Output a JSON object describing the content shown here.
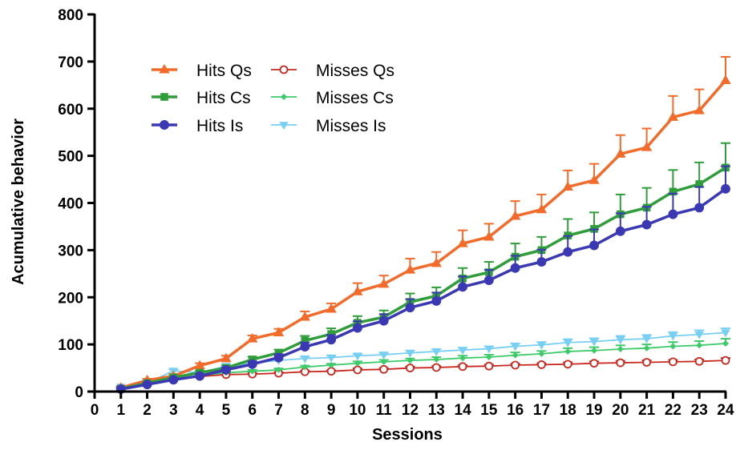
{
  "chart_data": {
    "type": "line",
    "title": "",
    "xlabel": "Sessions",
    "ylabel": "Acumulative behavior",
    "xlim": [
      0,
      24
    ],
    "ylim": [
      0,
      800
    ],
    "x_ticks": [
      "0",
      "1",
      "2",
      "3",
      "4",
      "5",
      "6",
      "7",
      "8",
      "9",
      "10",
      "11",
      "12",
      "13",
      "14",
      "15",
      "16",
      "17",
      "18",
      "19",
      "20",
      "21",
      "22",
      "23",
      "24"
    ],
    "y_ticks": [
      "0",
      "100",
      "200",
      "300",
      "400",
      "500",
      "600",
      "700",
      "800"
    ],
    "grid": false,
    "legend_position": "top-left",
    "x": [
      1,
      2,
      3,
      4,
      5,
      6,
      7,
      8,
      9,
      10,
      11,
      12,
      13,
      14,
      15,
      16,
      17,
      18,
      19,
      20,
      21,
      22,
      23,
      24
    ],
    "series": [
      {
        "name": "Hits Qs",
        "color": "#F26B2A",
        "marker": "triangle-up-filled",
        "values": [
          8,
          24,
          33,
          55,
          70,
          112,
          125,
          158,
          175,
          212,
          228,
          258,
          272,
          314,
          328,
          372,
          386,
          434,
          448,
          504,
          518,
          582,
          596,
          660
        ],
        "error": [
          3,
          3,
          4,
          5,
          6,
          7,
          8,
          12,
          12,
          18,
          18,
          24,
          24,
          28,
          28,
          32,
          32,
          35,
          35,
          40,
          40,
          45,
          45,
          50
        ]
      },
      {
        "name": "Misses Qs",
        "color": "#C8281E",
        "marker": "circle-open",
        "values": [
          8,
          18,
          26,
          32,
          36,
          37,
          39,
          42,
          43,
          46,
          47,
          50,
          51,
          53,
          54,
          56,
          57,
          58,
          60,
          61,
          62,
          63,
          64,
          66
        ],
        "error": [
          2,
          2,
          2,
          2,
          2,
          2,
          2,
          2,
          2,
          3,
          3,
          3,
          3,
          3,
          3,
          3,
          3,
          4,
          4,
          4,
          4,
          4,
          4,
          5
        ]
      },
      {
        "name": "Hits Cs",
        "color": "#2F9E3A",
        "marker": "square-filled",
        "values": [
          6,
          18,
          30,
          40,
          50,
          68,
          82,
          108,
          122,
          146,
          158,
          190,
          203,
          240,
          253,
          286,
          300,
          331,
          345,
          376,
          390,
          424,
          440,
          475
        ],
        "error": [
          3,
          3,
          3,
          4,
          5,
          6,
          7,
          10,
          12,
          14,
          14,
          18,
          18,
          22,
          22,
          28,
          28,
          35,
          35,
          42,
          42,
          46,
          46,
          52
        ]
      },
      {
        "name": "Misses Cs",
        "color": "#3DCB6A",
        "marker": "diamond-filled",
        "values": [
          8,
          16,
          26,
          34,
          40,
          43,
          46,
          52,
          56,
          60,
          63,
          66,
          68,
          71,
          73,
          77,
          80,
          85,
          87,
          90,
          92,
          96,
          98,
          102
        ],
        "error": [
          2,
          2,
          2,
          2,
          3,
          3,
          3,
          3,
          3,
          4,
          4,
          4,
          5,
          5,
          5,
          6,
          6,
          7,
          7,
          8,
          8,
          9,
          9,
          10
        ]
      },
      {
        "name": "Hits Is",
        "color": "#3B38B4",
        "marker": "circle-filled",
        "values": [
          5,
          15,
          25,
          33,
          46,
          58,
          72,
          95,
          110,
          135,
          150,
          178,
          192,
          222,
          236,
          262,
          275,
          296,
          310,
          340,
          354,
          376,
          390,
          430
        ],
        "error": [
          3,
          3,
          3,
          4,
          5,
          6,
          7,
          9,
          10,
          14,
          14,
          18,
          18,
          22,
          22,
          26,
          26,
          34,
          34,
          38,
          38,
          44,
          44,
          48
        ]
      },
      {
        "name": "Misses Is",
        "color": "#78CFF4",
        "marker": "triangle-down-filled",
        "values": [
          10,
          18,
          44,
          40,
          54,
          60,
          66,
          70,
          72,
          76,
          78,
          82,
          85,
          88,
          91,
          96,
          99,
          104,
          106,
          110,
          112,
          118,
          121,
          125
        ],
        "error": [
          2,
          2,
          3,
          3,
          3,
          3,
          4,
          4,
          4,
          4,
          4,
          5,
          5,
          5,
          5,
          6,
          6,
          7,
          7,
          8,
          8,
          8,
          9,
          9
        ]
      }
    ]
  }
}
